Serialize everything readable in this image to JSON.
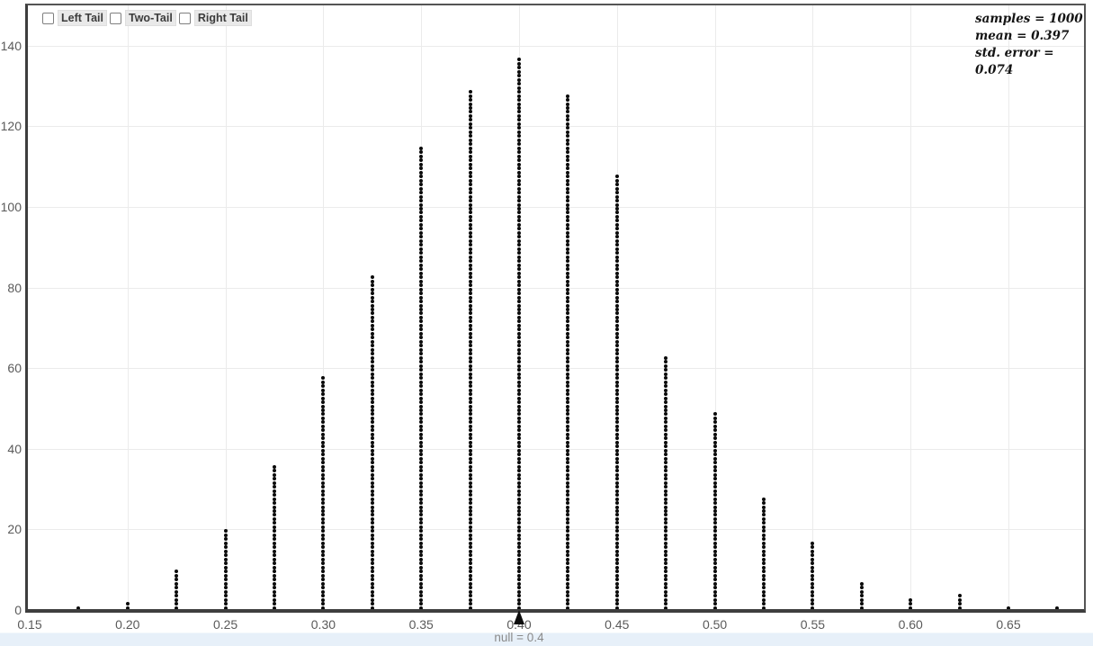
{
  "controls": {
    "items": [
      {
        "label": "Left Tail",
        "checked": false
      },
      {
        "label": "Two-Tail",
        "checked": false
      },
      {
        "label": "Right Tail",
        "checked": false
      }
    ]
  },
  "stats": {
    "samples_line": "samples = 1000",
    "mean_line": "mean = 0.397",
    "std_error_line": "std. error = 0.074",
    "samples": 1000,
    "mean": 0.397,
    "std_error": 0.074
  },
  "footer": {
    "null_label": "null = 0.4",
    "null_value": 0.4
  },
  "colors": {
    "dot": "#0a0a0a",
    "gridline": "#ebebeb",
    "axis_border": "#3e3e3e",
    "tick_text": "#5a5a5a",
    "footer_strip": "#e7f0f9",
    "null_text": "#8a8a8a"
  },
  "chart_data": {
    "type": "scatter",
    "subtype": "dotplot-randomization-distribution",
    "title": "",
    "xlabel": "null = 0.4",
    "ylabel": "",
    "x": [
      0.175,
      0.2,
      0.225,
      0.25,
      0.275,
      0.3,
      0.325,
      0.35,
      0.375,
      0.4,
      0.425,
      0.45,
      0.475,
      0.5,
      0.525,
      0.55,
      0.575,
      0.6,
      0.625,
      0.65,
      0.675
    ],
    "counts": [
      1,
      2,
      10,
      20,
      36,
      58,
      83,
      115,
      129,
      137,
      128,
      108,
      63,
      49,
      28,
      17,
      7,
      3,
      4,
      1,
      1
    ],
    "x_ticks": [
      0.15,
      0.2,
      0.25,
      0.3,
      0.35,
      0.4,
      0.45,
      0.5,
      0.55,
      0.6,
      0.65
    ],
    "x_tick_labels": [
      "0.15",
      "0.20",
      "0.25",
      "0.30",
      "0.35",
      "0.40",
      "0.45",
      "0.50",
      "0.55",
      "0.60",
      "0.65"
    ],
    "y_ticks": [
      0,
      20,
      40,
      60,
      80,
      100,
      120,
      140
    ],
    "y_tick_labels": [
      "0",
      "20",
      "40",
      "60",
      "80",
      "100",
      "120",
      "140"
    ],
    "xlim": [
      0.1475,
      0.687
    ],
    "ylim": [
      0,
      151
    ],
    "grid": true,
    "legend": "none",
    "null_marker": 0.4,
    "annotations": [
      "samples = 1000",
      "mean = 0.397",
      "std. error = 0.074"
    ]
  }
}
